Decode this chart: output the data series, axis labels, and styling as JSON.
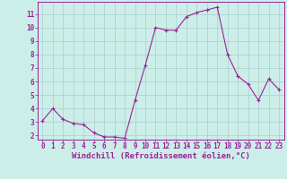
{
  "x": [
    0,
    1,
    2,
    3,
    4,
    5,
    6,
    7,
    8,
    9,
    10,
    11,
    12,
    13,
    14,
    15,
    16,
    17,
    18,
    19,
    20,
    21,
    22,
    23
  ],
  "y": [
    3.1,
    4.0,
    3.2,
    2.9,
    2.8,
    2.2,
    1.9,
    1.9,
    1.8,
    4.6,
    7.2,
    10.0,
    9.8,
    9.8,
    10.8,
    11.1,
    11.3,
    11.5,
    8.0,
    6.4,
    5.8,
    4.6,
    6.2,
    5.4
  ],
  "line_color": "#992299",
  "marker": "+",
  "marker_size": 3,
  "marker_lw": 0.8,
  "bg_color": "#cceee8",
  "grid_color": "#aacccc",
  "xlabel": "Windchill (Refroidissement éolien,°C)",
  "xlabel_color": "#992299",
  "tick_color": "#992299",
  "ylim": [
    1.7,
    11.9
  ],
  "xlim": [
    -0.5,
    23.5
  ],
  "yticks": [
    2,
    3,
    4,
    5,
    6,
    7,
    8,
    9,
    10,
    11
  ],
  "xticks": [
    0,
    1,
    2,
    3,
    4,
    5,
    6,
    7,
    8,
    9,
    10,
    11,
    12,
    13,
    14,
    15,
    16,
    17,
    18,
    19,
    20,
    21,
    22,
    23
  ],
  "spine_color": "#992299",
  "font_size_ticks": 5.5,
  "font_size_xlabel": 6.5,
  "line_width": 0.8
}
